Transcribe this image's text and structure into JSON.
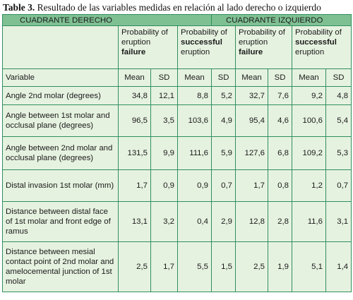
{
  "caption": {
    "label": "Table 3.",
    "text": "Resultado de las variables medidas en relación al lado derecho o izquierdo"
  },
  "quadrants": {
    "right": "CUADRANTE DERECHO",
    "left": "CUADRANTE IZQUIERDO"
  },
  "groups": {
    "g1": {
      "pre": "Probability of eruption",
      "bold": "failure",
      "post": ""
    },
    "g2": {
      "pre": "Probability of",
      "bold": "successful",
      "post": "eruption"
    },
    "g3": {
      "pre": "Probability of eruption",
      "bold": "failure",
      "post": ""
    },
    "g4": {
      "pre": "Probability of",
      "bold": "successful",
      "post": "eruption"
    }
  },
  "header": {
    "variable": "Variable",
    "mean": "Mean",
    "sd": "SD"
  },
  "rows": [
    {
      "label": "Angle 2nd molar (degrees)",
      "values": [
        "34,8",
        "12,1",
        "8,8",
        "5,2",
        "32,7",
        "7,6",
        "9,2",
        "4,8"
      ]
    },
    {
      "label": "Angle between 1st molar and occlusal plane (degrees)",
      "values": [
        "96,5",
        "3,5",
        "103,6",
        "4,9",
        "95,4",
        "4,6",
        "100,6",
        "5,4"
      ]
    },
    {
      "label": "Angle between 2nd molar and occlusal plane (degrees)",
      "values": [
        "131,5",
        "9,9",
        "111,6",
        "5,9",
        "127,6",
        "6,8",
        "109,2",
        "5,3"
      ]
    },
    {
      "label": "Distal invasion 1st molar (mm)",
      "values": [
        "1,7",
        "0,9",
        "0,9",
        "0,7",
        "1,7",
        "0,8",
        "1,2",
        "0,7"
      ]
    },
    {
      "label": "Distance between distal face of 1st molar and front edge of ramus",
      "values": [
        "13,1",
        "3,2",
        "0,4",
        "2,9",
        "12,8",
        "2,8",
        "11,6",
        "3,1"
      ]
    },
    {
      "label": "Distance between mesial contact point of 2nd molar and amelocemental junction of 1st molar",
      "values": [
        "2,5",
        "1,7",
        "5,5",
        "1,5",
        "2,5",
        "1,9",
        "5,1",
        "1,4"
      ]
    }
  ]
}
